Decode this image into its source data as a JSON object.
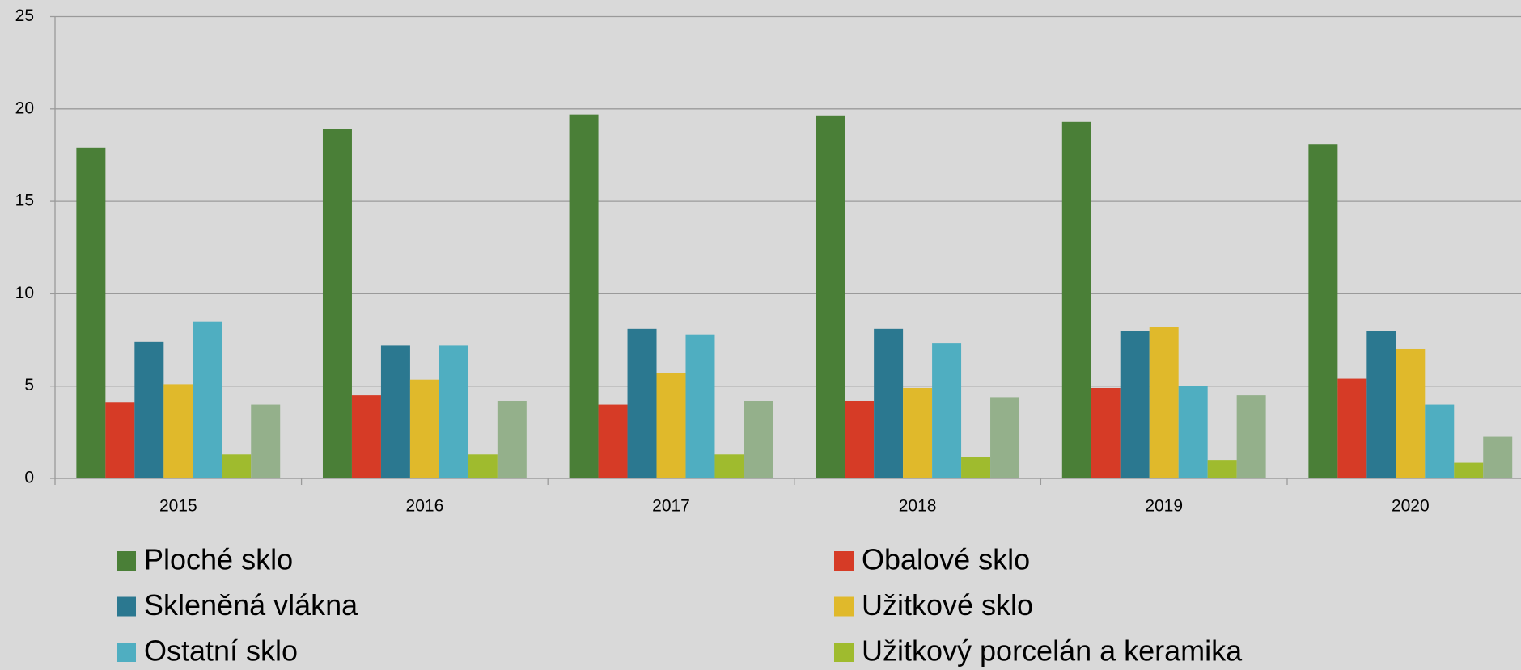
{
  "chart_data": {
    "type": "bar",
    "categories": [
      "2015",
      "2016",
      "2017",
      "2018",
      "2019",
      "2020"
    ],
    "series": [
      {
        "name": "Ploché sklo",
        "color": "#4a7f37",
        "values": [
          17.9,
          18.9,
          19.7,
          19.65,
          19.3,
          18.1
        ]
      },
      {
        "name": "Obalové sklo",
        "color": "#d63b26",
        "values": [
          4.1,
          4.5,
          4.0,
          4.2,
          4.9,
          5.4
        ]
      },
      {
        "name": "Skleněná vlákna",
        "color": "#2b7890",
        "values": [
          7.4,
          7.2,
          8.1,
          8.1,
          8.0,
          8.0
        ]
      },
      {
        "name": "Užitkové sklo",
        "color": "#e0b92b",
        "values": [
          5.1,
          5.35,
          5.7,
          4.9,
          8.2,
          7.0
        ]
      },
      {
        "name": "Ostatní sklo",
        "color": "#4faec1",
        "values": [
          8.5,
          7.2,
          7.8,
          7.3,
          5.0,
          4.0
        ]
      },
      {
        "name": "Užitkový porcelán a keramika",
        "color": "#9fbb2e",
        "values": [
          1.3,
          1.3,
          1.3,
          1.15,
          1.0,
          0.85
        ]
      },
      {
        "color": "#94b08b",
        "values": [
          4.0,
          4.2,
          4.2,
          4.4,
          4.5,
          2.25
        ]
      }
    ],
    "ylim": [
      0,
      25
    ],
    "yticks": [
      0,
      5,
      10,
      15,
      20,
      25
    ],
    "grid": true
  }
}
